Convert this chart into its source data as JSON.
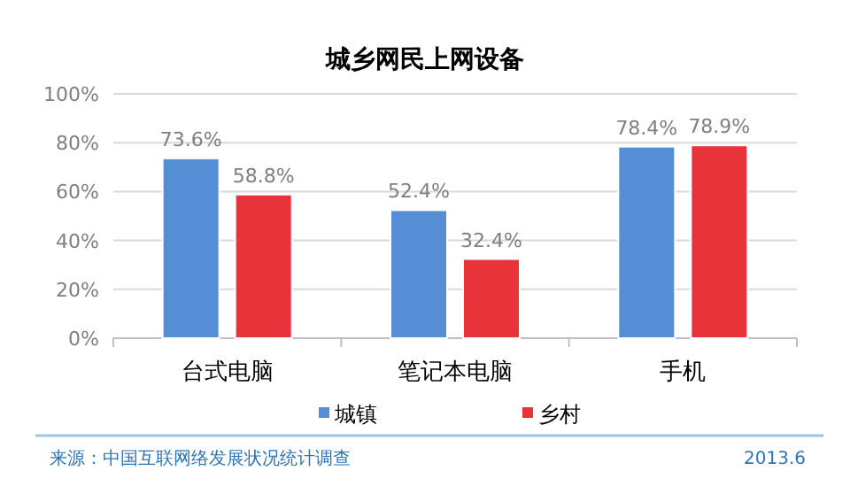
{
  "chart_data": {
    "type": "bar",
    "title": "城乡网民上网设备",
    "categories": [
      "台式电脑",
      "笔记本电脑",
      "手机"
    ],
    "series": [
      {
        "name": "城镇",
        "color": "#558ed5",
        "values": [
          73.6,
          52.4,
          78.4
        ]
      },
      {
        "name": "乡村",
        "color": "#e8333a",
        "values": [
          58.8,
          32.4,
          78.9
        ]
      }
    ],
    "value_labels": [
      [
        "73.6%",
        "52.4%",
        "78.4%"
      ],
      [
        "58.8%",
        "32.4%",
        "78.9%"
      ]
    ],
    "ylim": [
      0,
      100
    ],
    "yticks": [
      {
        "value": 0,
        "label": "0%"
      },
      {
        "value": 20,
        "label": "20%"
      },
      {
        "value": 40,
        "label": "40%"
      },
      {
        "value": 60,
        "label": "60%"
      },
      {
        "value": 80,
        "label": "80%"
      },
      {
        "value": 100,
        "label": "100%"
      }
    ],
    "grid": "y",
    "legend": "bottom",
    "annotations": [
      "来源：中国互联网络发展状况统计调查",
      "2013.6"
    ]
  }
}
